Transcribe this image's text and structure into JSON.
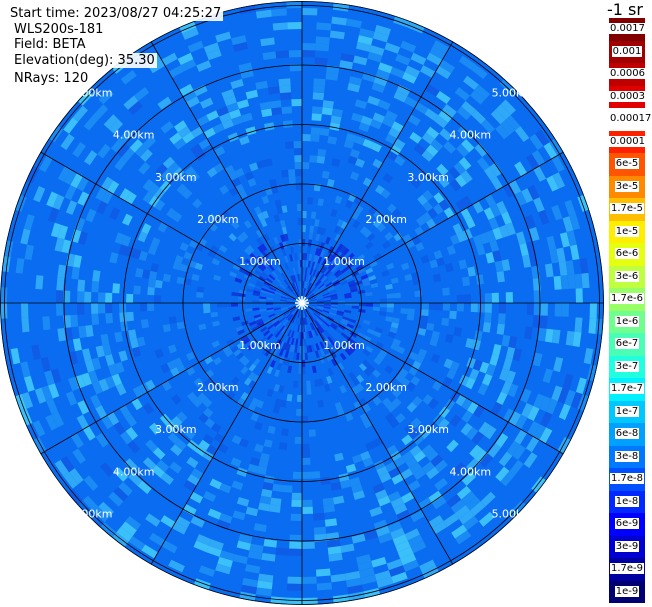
{
  "info": {
    "start_time": "Start time: 2023/08/27 04:25:27",
    "site": "WLS200s-181",
    "field": "Field: BETA",
    "elevation": "Elevation(deg): 35.30",
    "nrays": "NRays: 120"
  },
  "colorbar": {
    "unit_label": "-1 sr",
    "entries": [
      {
        "label": "0.0017",
        "color": "#800000"
      },
      {
        "label": "0.001",
        "color": "#a00000"
      },
      {
        "label": "0.0006",
        "color": "#c00000"
      },
      {
        "label": "0.0003",
        "color": "#e00000"
      },
      {
        "label": "0.00017",
        "color": "#ffffff"
      },
      {
        "label": "0.0001",
        "color": "#ff2000"
      },
      {
        "label": "6e-5",
        "color": "#ff5500"
      },
      {
        "label": "3e-5",
        "color": "#ff8a00"
      },
      {
        "label": "1.7e-5",
        "color": "#ffbf00"
      },
      {
        "label": "1e-5",
        "color": "#ffee00"
      },
      {
        "label": "6e-6",
        "color": "#e6ff10"
      },
      {
        "label": "3e-6",
        "color": "#bfff3f"
      },
      {
        "label": "1.7e-6",
        "color": "#99ff66"
      },
      {
        "label": "1e-6",
        "color": "#70ff8f"
      },
      {
        "label": "6e-7",
        "color": "#49ffb6"
      },
      {
        "label": "3e-7",
        "color": "#20ffdf"
      },
      {
        "label": "1.7e-7",
        "color": "#00f0ff"
      },
      {
        "label": "1e-7",
        "color": "#00c8ff"
      },
      {
        "label": "6e-8",
        "color": "#00a0ff"
      },
      {
        "label": "3e-8",
        "color": "#0078ff"
      },
      {
        "label": "1.7e-8",
        "color": "#0050ff"
      },
      {
        "label": "1e-8",
        "color": "#0028ff"
      },
      {
        "label": "6e-9",
        "color": "#0000ff"
      },
      {
        "label": "3e-9",
        "color": "#0000d0"
      },
      {
        "label": "1.7e-9",
        "color": "#0000a0"
      },
      {
        "label": "1e-9",
        "color": "#000070"
      }
    ]
  },
  "chart_data": {
    "type": "heatmap",
    "projection": "polar PPI",
    "field": "BETA",
    "nrays": 120,
    "range_rings_km": [
      1,
      2,
      3,
      4,
      5
    ],
    "range_ring_labels": [
      "1.00km",
      "2.00km",
      "3.00km",
      "4.00km",
      "5.00km"
    ],
    "azimuth_spokes_deg": [
      0,
      30,
      60,
      90,
      120,
      150,
      180,
      210,
      240,
      270,
      300,
      330
    ],
    "max_range_km": 5.8,
    "colors": {
      "background_field": "#0a6cf0",
      "mid_field": "#1a8af5",
      "outer_field": "#2fa8f7",
      "near_field": "#1040e8",
      "grid": "#000000",
      "ring_label": "#ffffff"
    }
  }
}
